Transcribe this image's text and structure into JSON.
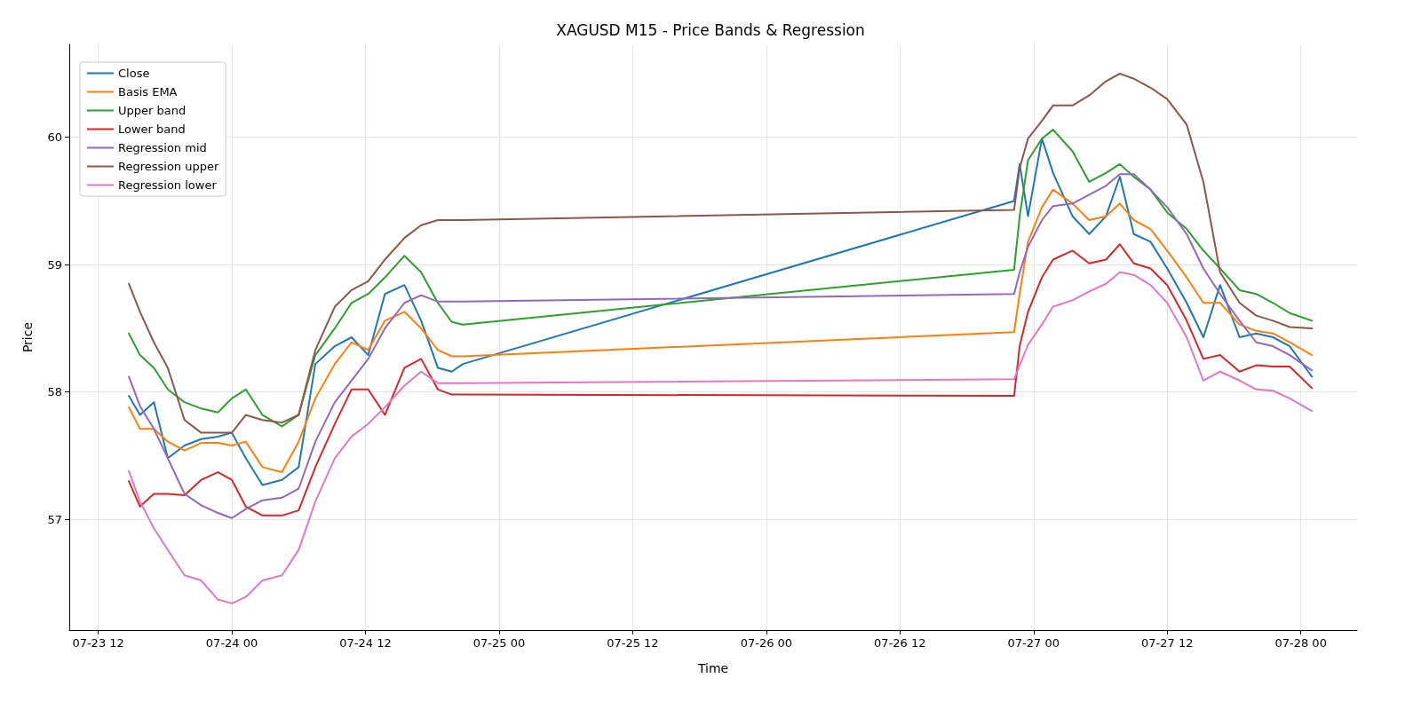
{
  "chart_data": {
    "type": "line",
    "title": "XAGUSD M15 - Price Bands & Regression",
    "xlabel": "Time",
    "ylabel": "Price",
    "x": [
      "--07-23T14:45",
      "--07-23T15:45",
      "--07-23T17:00",
      "--07-23T18:15",
      "--07-23T19:45",
      "--07-23T21:15",
      "--07-23T22:45",
      "--07-24T00:00",
      "--07-24T01:15",
      "--07-24T02:45",
      "--07-24T04:30",
      "--07-24T06:00",
      "--07-24T07:30",
      "--07-24T09:15",
      "--07-24T10:45",
      "--07-24T12:15",
      "--07-24T13:45",
      "--07-24T15:30",
      "--07-24T17:00",
      "--07-24T18:30",
      "--07-24T19:45",
      "--07-24T20:45",
      "--07-26T22:15",
      "--07-26T22:45",
      "--07-26T23:30",
      "--07-27T00:45",
      "--07-27T01:45",
      "--07-27T03:30",
      "--07-27T05:00",
      "--07-27T06:30",
      "--07-27T07:45",
      "--07-27T09:00",
      "--07-27T10:30",
      "--07-27T12:00",
      "--07-27T13:45",
      "--07-27T15:15",
      "--07-27T16:45",
      "--07-27T18:30",
      "--07-27T20:00",
      "--07-27T21:30",
      "--07-27T23:00",
      "--07-28T01:00"
    ],
    "series": [
      {
        "name": "Close",
        "color": "#1f77b4",
        "values": [
          57.97,
          57.82,
          57.92,
          57.48,
          57.58,
          57.63,
          57.65,
          57.68,
          57.48,
          57.27,
          57.31,
          57.41,
          58.22,
          58.36,
          58.43,
          58.29,
          58.77,
          58.84,
          58.56,
          58.19,
          58.16,
          58.22,
          59.5,
          59.79,
          59.38,
          59.99,
          59.72,
          59.38,
          59.24,
          59.38,
          59.69,
          59.24,
          59.18,
          58.97,
          58.7,
          58.43,
          58.84,
          58.43,
          58.46,
          58.43,
          58.36,
          58.12
        ]
      },
      {
        "name": "Basis EMA",
        "color": "#ff7f0e",
        "values": [
          57.88,
          57.71,
          57.71,
          57.61,
          57.54,
          57.6,
          57.6,
          57.58,
          57.61,
          57.41,
          57.37,
          57.61,
          57.95,
          58.22,
          58.39,
          58.33,
          58.56,
          58.63,
          58.5,
          58.33,
          58.28,
          58.28,
          58.47,
          58.77,
          59.18,
          59.45,
          59.59,
          59.48,
          59.35,
          59.38,
          59.48,
          59.35,
          59.28,
          59.11,
          58.9,
          58.7,
          58.7,
          58.53,
          58.48,
          58.46,
          58.39,
          58.29
        ]
      },
      {
        "name": "Upper band",
        "color": "#2ca02c",
        "values": [
          58.46,
          58.29,
          58.19,
          58.02,
          57.92,
          57.87,
          57.84,
          57.95,
          58.02,
          57.82,
          57.73,
          57.82,
          58.29,
          58.5,
          58.7,
          58.77,
          58.9,
          59.07,
          58.94,
          58.7,
          58.55,
          58.53,
          58.96,
          59.38,
          59.82,
          59.99,
          60.06,
          59.89,
          59.65,
          59.72,
          59.79,
          59.69,
          59.59,
          59.41,
          59.28,
          59.11,
          58.97,
          58.8,
          58.77,
          58.7,
          58.62,
          58.56
        ]
      },
      {
        "name": "Lower band",
        "color": "#d62728",
        "values": [
          57.3,
          57.1,
          57.2,
          57.2,
          57.19,
          57.31,
          57.37,
          57.31,
          57.1,
          57.03,
          57.03,
          57.07,
          57.41,
          57.75,
          58.02,
          58.02,
          57.82,
          58.19,
          58.26,
          58.02,
          57.98,
          57.98,
          57.97,
          58.36,
          58.63,
          58.9,
          59.04,
          59.11,
          59.01,
          59.04,
          59.16,
          59.01,
          58.97,
          58.84,
          58.56,
          58.26,
          58.29,
          58.16,
          58.21,
          58.2,
          58.2,
          58.03
        ]
      },
      {
        "name": "Regression mid",
        "color": "#9467bd",
        "values": [
          58.12,
          57.89,
          57.71,
          57.48,
          57.2,
          57.11,
          57.05,
          57.01,
          57.08,
          57.15,
          57.17,
          57.24,
          57.61,
          57.92,
          58.09,
          58.26,
          58.5,
          58.7,
          58.76,
          58.71,
          58.71,
          58.71,
          58.77,
          58.94,
          59.14,
          59.35,
          59.46,
          59.48,
          59.55,
          59.62,
          59.71,
          59.71,
          59.59,
          59.45,
          59.24,
          58.97,
          58.77,
          58.56,
          58.39,
          58.36,
          58.29,
          58.17
        ]
      },
      {
        "name": "Regression upper",
        "color": "#8c564b",
        "values": [
          58.85,
          58.63,
          58.39,
          58.19,
          57.78,
          57.68,
          57.68,
          57.68,
          57.82,
          57.78,
          57.76,
          57.82,
          58.33,
          58.67,
          58.8,
          58.87,
          59.04,
          59.21,
          59.31,
          59.35,
          59.35,
          59.35,
          59.43,
          59.76,
          59.99,
          60.13,
          60.25,
          60.25,
          60.33,
          60.44,
          60.5,
          60.46,
          60.39,
          60.3,
          60.1,
          59.65,
          58.94,
          58.7,
          58.6,
          58.56,
          58.51,
          58.5
        ]
      },
      {
        "name": "Regression lower",
        "color": "#e377c2",
        "values": [
          57.38,
          57.14,
          56.93,
          56.76,
          56.56,
          56.52,
          56.37,
          56.34,
          56.39,
          56.52,
          56.56,
          56.76,
          57.14,
          57.48,
          57.65,
          57.75,
          57.88,
          58.05,
          58.16,
          58.07,
          58.07,
          58.07,
          58.1,
          58.21,
          58.37,
          58.53,
          58.67,
          58.72,
          58.79,
          58.85,
          58.94,
          58.92,
          58.84,
          58.7,
          58.43,
          58.09,
          58.16,
          58.09,
          58.02,
          58.01,
          57.95,
          57.85
        ]
      }
    ],
    "xlim": [
      "--07-23T09:24",
      "--07-28T05:03"
    ],
    "xticks": [
      {
        "value": "--07-23T12:00",
        "label": "07-23 12"
      },
      {
        "value": "--07-24T00:00",
        "label": "07-24 00"
      },
      {
        "value": "--07-24T12:00",
        "label": "07-24 12"
      },
      {
        "value": "--07-25T00:00",
        "label": "07-25 00"
      },
      {
        "value": "--07-25T12:00",
        "label": "07-25 12"
      },
      {
        "value": "--07-26T00:00",
        "label": "07-26 00"
      },
      {
        "value": "--07-26T12:00",
        "label": "07-26 12"
      },
      {
        "value": "--07-27T00:00",
        "label": "07-27 00"
      },
      {
        "value": "--07-27T12:00",
        "label": "07-27 12"
      },
      {
        "value": "--07-28T00:00",
        "label": "07-28 00"
      }
    ],
    "ylim": [
      56.13,
      60.73
    ],
    "yticks": [
      57,
      58,
      59,
      60
    ],
    "grid": true,
    "legend": "top left",
    "marker": "none",
    "line_style": "solid"
  }
}
